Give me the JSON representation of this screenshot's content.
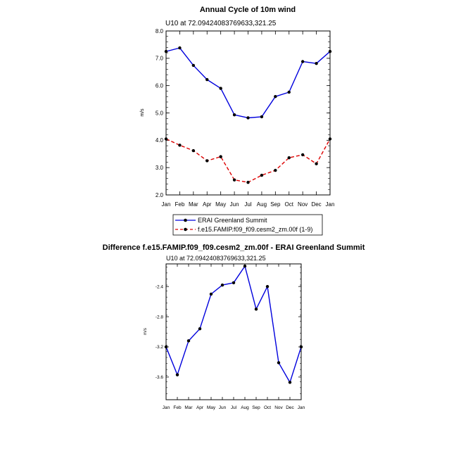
{
  "chart_data": [
    {
      "type": "line",
      "title": "Annual Cycle of 10m wind",
      "subtitle": "U10 at 72.09424083769633,321.25",
      "ylabel": "m/s",
      "xlabel": "",
      "categories": [
        "Jan",
        "Feb",
        "Mar",
        "Apr",
        "May",
        "Jun",
        "Jul",
        "Aug",
        "Sep",
        "Oct",
        "Nov",
        "Dec",
        "Jan"
      ],
      "ylim": [
        2.0,
        8.0
      ],
      "yticks": [
        "2.0",
        "3.0",
        "4.0",
        "5.0",
        "6.0",
        "7.0",
        "8.0"
      ],
      "grid": false,
      "legend_position": "bottom",
      "series": [
        {
          "name": "ERAI Greenland Summit",
          "color": "#0000dd",
          "style": "solid",
          "values": [
            7.25,
            7.38,
            6.74,
            6.22,
            5.9,
            4.93,
            4.82,
            4.86,
            5.6,
            5.76,
            6.88,
            6.81,
            7.25
          ]
        },
        {
          "name": "f.e15.FAMIP.f09_f09.cesm2_zm.00f (1-9)",
          "color": "#dd0000",
          "style": "dashed",
          "values": [
            4.05,
            3.82,
            3.62,
            3.25,
            3.4,
            2.55,
            2.46,
            2.72,
            2.9,
            3.36,
            3.47,
            3.14,
            4.05
          ]
        }
      ]
    },
    {
      "type": "line",
      "title": "Difference f.e15.FAMIP.f09_f09.cesm2_zm.00f - ERAI Greenland Summit",
      "subtitle": "U10 at 72.09424083769633,321.25",
      "ylabel": "m/s",
      "xlabel": "",
      "categories": [
        "Jan",
        "Feb",
        "Mar",
        "Apr",
        "May",
        "Jun",
        "Jul",
        "Aug",
        "Sep",
        "Oct",
        "Nov",
        "Dec",
        "Jan"
      ],
      "ylim": [
        -3.9,
        -2.1
      ],
      "yticks": [
        "-3.6",
        "-3.2",
        "-2.8",
        "-2.4"
      ],
      "ytick_values": [
        -3.6,
        -3.2,
        -2.8,
        -2.4
      ],
      "grid": false,
      "series": [
        {
          "color": "#0000dd",
          "style": "solid",
          "values": [
            -3.2,
            -3.57,
            -3.12,
            -2.96,
            -2.5,
            -2.38,
            -2.35,
            -2.13,
            -2.7,
            -2.4,
            -3.41,
            -3.67,
            -3.2
          ]
        }
      ]
    }
  ]
}
